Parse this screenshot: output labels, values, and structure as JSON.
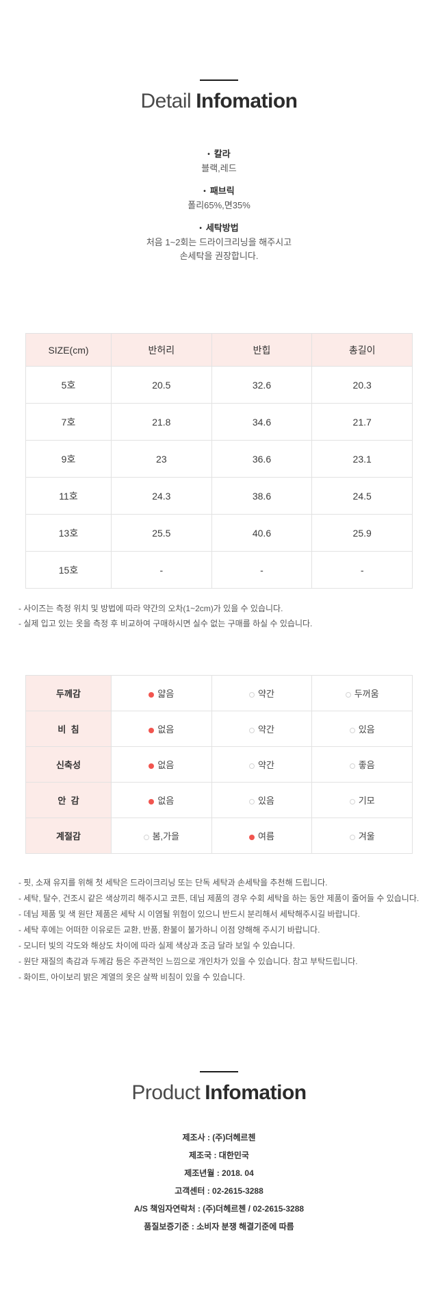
{
  "detail_section": {
    "title_light": "Detail",
    "title_bold": "Infomation",
    "info_items": [
      {
        "label": "칼라",
        "lines": [
          "블랙,레드"
        ]
      },
      {
        "label": "패브릭",
        "lines": [
          "폴리65%,면35%"
        ]
      },
      {
        "label": "세탁방법",
        "lines": [
          "처음 1~2회는 드라이크리닝을 해주시고",
          "손세탁을 권장합니다."
        ]
      }
    ],
    "size_table": {
      "headers": [
        "SIZE(cm)",
        "반허리",
        "반힙",
        "총길이"
      ],
      "rows": [
        [
          "5호",
          "20.5",
          "32.6",
          "20.3"
        ],
        [
          "7호",
          "21.8",
          "34.6",
          "21.7"
        ],
        [
          "9호",
          "23",
          "36.6",
          "23.1"
        ],
        [
          "11호",
          "24.3",
          "38.6",
          "24.5"
        ],
        [
          "13호",
          "25.5",
          "40.6",
          "25.9"
        ],
        [
          "15호",
          "-",
          "-",
          "-"
        ]
      ]
    },
    "size_notes": [
      "- 사이즈는 측정 위치 및 방법에 따라 약간의 오차(1~2cm)가 있을 수 있습니다.",
      "- 실제 입고 있는 옷을 측정 후 비교하여 구매하시면 실수 없는 구매를 하실 수 있습니다."
    ],
    "attr_table": {
      "rows": [
        {
          "label": "두께감",
          "options": [
            {
              "text": "얇음",
              "selected": true
            },
            {
              "text": "약간",
              "selected": false
            },
            {
              "text": "두꺼움",
              "selected": false
            }
          ]
        },
        {
          "label": "비  침",
          "options": [
            {
              "text": "없음",
              "selected": true
            },
            {
              "text": "약간",
              "selected": false
            },
            {
              "text": "있음",
              "selected": false
            }
          ]
        },
        {
          "label": "신축성",
          "options": [
            {
              "text": "없음",
              "selected": true
            },
            {
              "text": "약간",
              "selected": false
            },
            {
              "text": "좋음",
              "selected": false
            }
          ]
        },
        {
          "label": "안  감",
          "options": [
            {
              "text": "없음",
              "selected": true
            },
            {
              "text": "있음",
              "selected": false
            },
            {
              "text": "기모",
              "selected": false
            }
          ]
        },
        {
          "label": "계절감",
          "options": [
            {
              "text": "봄,가을",
              "selected": false
            },
            {
              "text": "여름",
              "selected": true
            },
            {
              "text": "겨울",
              "selected": false
            }
          ]
        }
      ]
    },
    "care_notes": [
      "- 핏, 소재 유지를 위해 첫 세탁은 드라이크리닝 또는 단독 세탁과 손세탁을 추천해 드립니다.",
      "- 세탁, 탈수, 건조시 같은 색상끼리 해주시고 코튼, 데님 제품의 경우 수회 세탁을 하는 동안 제품이 줄어들 수 있습니다.",
      "- 데님 제품 및 색 원단 제품은 세탁 시 이염될 위험이 있으니 반드시 분리해서 세탁해주시길 바랍니다.",
      "- 세탁 후에는 어떠한 이유로든 교환, 반품, 환불이 불가하니 이점 양해해 주시기 바랍니다.",
      "- 모니터 빛의 각도와 해상도 차이에 따라 실제 색상과 조금 달라 보일 수 있습니다.",
      "- 원단 재질의 촉감과 두께감 등은 주관적인 느낌으로 개인차가 있을 수 있습니다. 참고 부탁드립니다.",
      "- 화이트, 아이보리 밝은 계열의 옷은 살짝 비침이 있을 수 있습니다."
    ]
  },
  "product_section": {
    "title_light": "Product",
    "title_bold": "Infomation",
    "info_lines": [
      "제조사 : (주)더헤르첸",
      "제조국 : 대한민국",
      "제조년월 : 2018. 04",
      "고객센터 : 02-2615-3288",
      "A/S 책임자연락처 : (주)더헤르첸 / 02-2615-3288",
      "품질보증기준 : 소비자 분쟁 해결기준에 따름"
    ]
  },
  "colors": {
    "accent_pink_bg": "#fcebe8",
    "selected_dot_red": "#f1554f",
    "table_border": "#e2e2e2"
  },
  "icons": {
    "bullet": "dot-bullet-icon",
    "radio_selected": "radio-selected-icon",
    "radio_unselected": "radio-unselected-icon"
  }
}
